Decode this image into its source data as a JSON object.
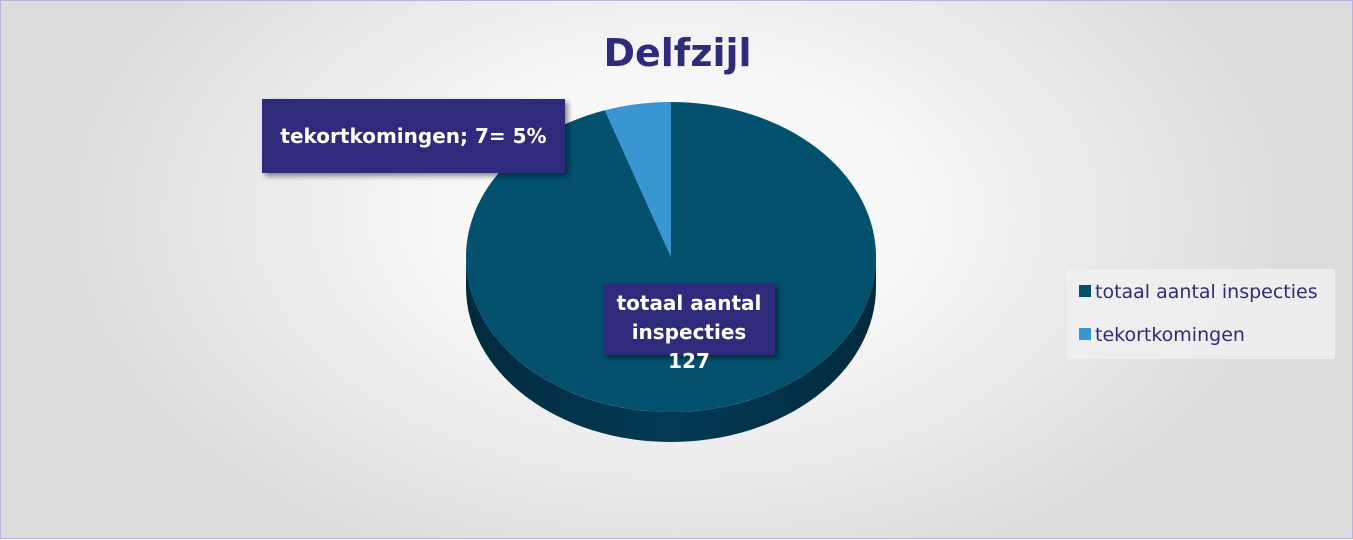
{
  "chart_data": {
    "type": "pie",
    "title": "Delfzijl",
    "categories": [
      "totaal aantal inspecties",
      "tekortkomingen"
    ],
    "values": [
      127,
      7
    ],
    "value_labels": [
      "totaal aantal inspecties 127",
      "tekortkomingen; 7= 5%"
    ],
    "colors": [
      "#03506f",
      "#3a96d2"
    ],
    "legend": "right"
  }
}
